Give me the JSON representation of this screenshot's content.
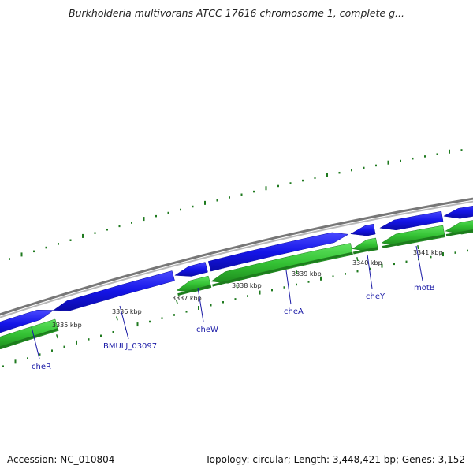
{
  "header": {
    "title": "Burkholderia multivorans ATCC 17616 chromosome 1, complete g..."
  },
  "footer": {
    "accession": "Accession: NC_010804",
    "summary": "Topology: circular; Length: 3,448,421 bp; Genes: 3,152"
  },
  "colors": {
    "forward_gene": "#1515e8",
    "reverse_gene": "#3ecf3e",
    "reverse_gene_dark": "#1d8a1d",
    "backbone": "#8a8a8a",
    "gc_ticks": "#1f7a1f",
    "label_line": "#1a1aa6"
  },
  "map": {
    "ticks": [
      {
        "label": "3335 kbp"
      },
      {
        "label": "3336 kbp"
      },
      {
        "label": "3337 kbp"
      },
      {
        "label": "3338 kbp"
      },
      {
        "label": "3339 kbp"
      },
      {
        "label": "3340 kbp"
      },
      {
        "label": "3341 kbp"
      }
    ],
    "genes": [
      {
        "name": "cheR"
      },
      {
        "name": "BMULJ_03097"
      },
      {
        "name": "cheW"
      },
      {
        "name": "cheA"
      },
      {
        "name": "cheY"
      },
      {
        "name": "motB"
      }
    ]
  }
}
